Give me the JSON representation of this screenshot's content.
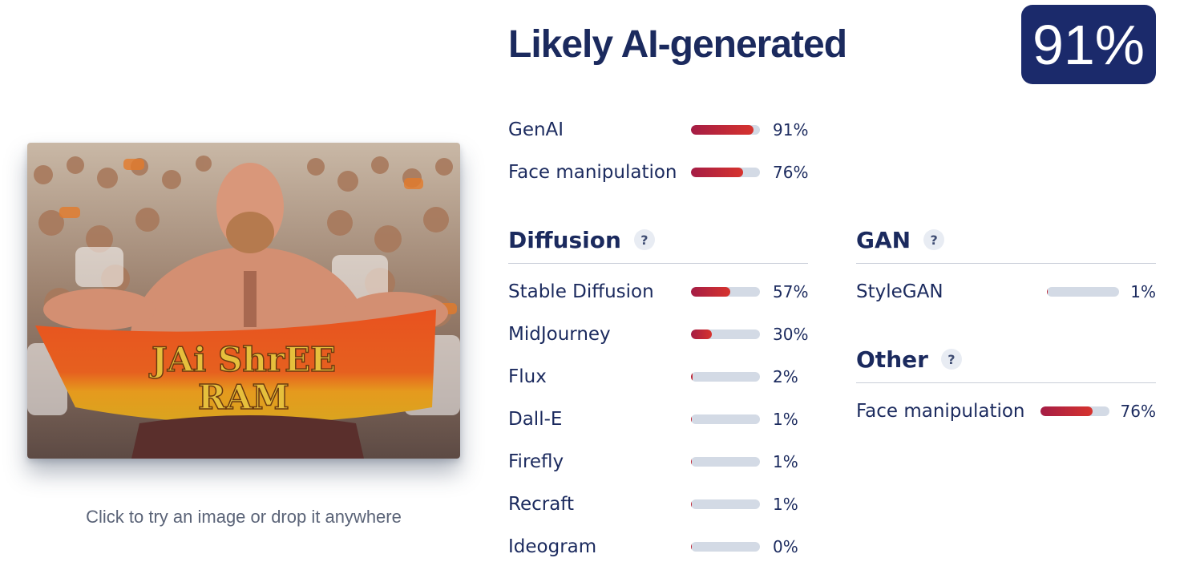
{
  "verdict": {
    "title": "Likely AI-generated",
    "score": "91%"
  },
  "image": {
    "banner_text_line1": "JAi ShrEE",
    "banner_text_line2": "RAM",
    "caption": "Click to try an image or drop it anywhere"
  },
  "summary": [
    {
      "label": "GenAI",
      "pct": "91%",
      "value": 0.91
    },
    {
      "label": "Face manipulation",
      "pct": "76%",
      "value": 0.76
    }
  ],
  "diffusion": {
    "title": "Diffusion",
    "help": "?",
    "items": [
      {
        "label": "Stable Diffusion",
        "pct": "57%",
        "value": 0.57
      },
      {
        "label": "MidJourney",
        "pct": "30%",
        "value": 0.3
      },
      {
        "label": "Flux",
        "pct": "2%",
        "value": 0.02
      },
      {
        "label": "Dall-E",
        "pct": "1%",
        "value": 0.01
      },
      {
        "label": "Firefly",
        "pct": "1%",
        "value": 0.01
      },
      {
        "label": "Recraft",
        "pct": "1%",
        "value": 0.01
      },
      {
        "label": "Ideogram",
        "pct": "0%",
        "value": 0.0
      }
    ]
  },
  "gan": {
    "title": "GAN",
    "help": "?",
    "items": [
      {
        "label": "StyleGAN",
        "pct": "1%",
        "value": 0.01
      }
    ]
  },
  "other": {
    "title": "Other",
    "help": "?",
    "items": [
      {
        "label": "Face manipulation",
        "pct": "76%",
        "value": 0.76
      }
    ]
  },
  "colors": {
    "navy": "#1b2a6b",
    "bar_track": "#d3dae5",
    "bar_fill_start": "#a51d45",
    "bar_fill_end": "#d6332e"
  }
}
